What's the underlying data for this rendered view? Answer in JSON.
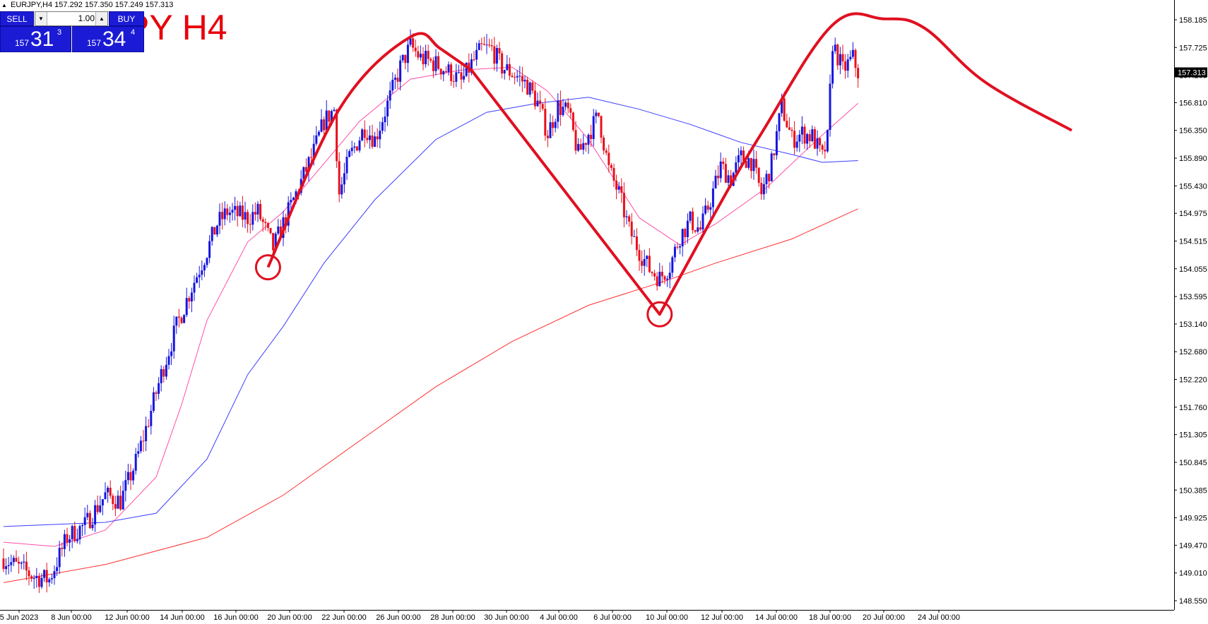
{
  "header": {
    "symbol": "EURJPY,H4",
    "ohlc": "157.292 157.350 157.249 157.313"
  },
  "watermark": "PY H4",
  "trade_panel": {
    "sell_label": "SELL",
    "buy_label": "BUY",
    "lot": "1.00",
    "bid_small": "157",
    "bid_large": "31",
    "bid_sup": "3",
    "ask_small": "157",
    "ask_large": "34",
    "ask_sup": "4"
  },
  "colors": {
    "bull": "#1515e0",
    "bear": "#e8101c",
    "ma_fast": "#ff4fa8",
    "ma_mid": "#3c3cff",
    "ma_slow": "#ff3030",
    "pattern": "#e01020",
    "grid_text": "#000000",
    "price_label_bg": "#000000"
  },
  "chart_data": {
    "type": "candlestick",
    "y_axis_ticks": [
      "158.185",
      "157.725",
      "157.265",
      "156.810",
      "156.350",
      "155.890",
      "155.430",
      "154.975",
      "154.515",
      "154.055",
      "153.595",
      "153.140",
      "152.680",
      "152.220",
      "151.760",
      "151.305",
      "150.845",
      "150.385",
      "149.925",
      "149.470",
      "149.010",
      "148.550"
    ],
    "x_axis_ticks": [
      "5 Jun 2023",
      "8 Jun 00:00",
      "12 Jun 00:00",
      "14 Jun 00:00",
      "16 Jun 00:00",
      "20 Jun 00:00",
      "22 Jun 00:00",
      "26 Jun 00:00",
      "28 Jun 00:00",
      "30 Jun 00:00",
      "4 Jul 00:00",
      "6 Jul 00:00",
      "10 Jul 00:00",
      "12 Jul 00:00",
      "14 Jul 00:00",
      "18 Jul 00:00",
      "20 Jul 00:00",
      "24 Jul 00:00"
    ],
    "ylim": [
      148.5,
      158.25
    ],
    "current_price": "157.313",
    "close_path": [
      [
        0,
        149.25
      ],
      [
        12,
        148.95
      ],
      [
        18,
        148.9
      ],
      [
        25,
        149.6
      ],
      [
        32,
        149.8
      ],
      [
        40,
        150.3
      ],
      [
        46,
        150.2
      ],
      [
        52,
        150.85
      ],
      [
        56,
        151.4
      ],
      [
        62,
        152.3
      ],
      [
        68,
        153.1
      ],
      [
        74,
        153.75
      ],
      [
        80,
        154.35
      ],
      [
        84,
        154.8
      ],
      [
        88,
        155.0
      ],
      [
        96,
        154.9
      ],
      [
        100,
        155.0
      ],
      [
        104,
        154.6
      ],
      [
        106,
        154.4
      ],
      [
        110,
        154.8
      ],
      [
        116,
        155.4
      ],
      [
        122,
        156.0
      ],
      [
        126,
        156.5
      ],
      [
        130,
        156.7
      ],
      [
        132,
        155.3
      ],
      [
        136,
        155.9
      ],
      [
        142,
        156.4
      ],
      [
        146,
        156.2
      ],
      [
        152,
        156.9
      ],
      [
        156,
        157.4
      ],
      [
        160,
        157.75
      ],
      [
        164,
        157.55
      ],
      [
        170,
        157.45
      ],
      [
        176,
        157.3
      ],
      [
        180,
        157.15
      ],
      [
        184,
        157.45
      ],
      [
        188,
        157.7
      ],
      [
        192,
        157.7
      ],
      [
        196,
        157.4
      ],
      [
        202,
        157.25
      ],
      [
        206,
        157.1
      ],
      [
        210,
        156.8
      ],
      [
        214,
        156.3
      ],
      [
        218,
        156.75
      ],
      [
        222,
        156.65
      ],
      [
        226,
        155.95
      ],
      [
        230,
        156.3
      ],
      [
        234,
        156.6
      ],
      [
        238,
        155.7
      ],
      [
        242,
        155.3
      ],
      [
        246,
        154.7
      ],
      [
        250,
        154.35
      ],
      [
        254,
        154.05
      ],
      [
        258,
        153.9
      ],
      [
        262,
        154.1
      ],
      [
        266,
        154.6
      ],
      [
        270,
        154.85
      ],
      [
        274,
        154.7
      ],
      [
        278,
        155.2
      ],
      [
        282,
        155.75
      ],
      [
        286,
        155.55
      ],
      [
        290,
        155.9
      ],
      [
        294,
        155.85
      ],
      [
        298,
        155.3
      ],
      [
        302,
        155.8
      ],
      [
        306,
        156.75
      ],
      [
        310,
        156.2
      ],
      [
        314,
        156.3
      ],
      [
        318,
        156.25
      ],
      [
        322,
        155.9
      ],
      [
        324,
        156.2
      ],
      [
        326,
        157.8
      ],
      [
        330,
        157.35
      ],
      [
        334,
        157.55
      ],
      [
        336,
        157.313
      ]
    ],
    "candles_visible": 337,
    "moving_averages": [
      {
        "points": [
          [
            0,
            149.52
          ],
          [
            20,
            149.45
          ],
          [
            40,
            149.72
          ],
          [
            60,
            150.6
          ],
          [
            70,
            151.8
          ],
          [
            80,
            153.2
          ],
          [
            96,
            154.5
          ],
          [
            110,
            155.0
          ],
          [
            120,
            155.5
          ],
          [
            140,
            156.5
          ],
          [
            160,
            157.2
          ],
          [
            180,
            157.35
          ],
          [
            200,
            157.4
          ],
          [
            214,
            157.0
          ],
          [
            230,
            156.2
          ],
          [
            250,
            154.9
          ],
          [
            266,
            154.45
          ],
          [
            280,
            154.8
          ],
          [
            300,
            155.4
          ],
          [
            320,
            156.2
          ],
          [
            336,
            156.8
          ]
        ]
      },
      {
        "points": [
          [
            0,
            149.78
          ],
          [
            40,
            149.85
          ],
          [
            60,
            150.0
          ],
          [
            80,
            150.9
          ],
          [
            96,
            152.3
          ],
          [
            110,
            153.1
          ],
          [
            126,
            154.15
          ],
          [
            146,
            155.2
          ],
          [
            170,
            156.2
          ],
          [
            190,
            156.65
          ],
          [
            210,
            156.8
          ],
          [
            230,
            156.9
          ],
          [
            250,
            156.7
          ],
          [
            270,
            156.45
          ],
          [
            290,
            156.15
          ],
          [
            310,
            155.95
          ],
          [
            322,
            155.82
          ],
          [
            336,
            155.85
          ]
        ]
      },
      {
        "points": [
          [
            0,
            148.85
          ],
          [
            40,
            149.15
          ],
          [
            80,
            149.6
          ],
          [
            110,
            150.3
          ],
          [
            140,
            151.2
          ],
          [
            170,
            152.1
          ],
          [
            200,
            152.85
          ],
          [
            230,
            153.45
          ],
          [
            260,
            153.85
          ],
          [
            280,
            154.15
          ],
          [
            310,
            154.55
          ],
          [
            336,
            155.05
          ]
        ]
      }
    ],
    "pattern_curve": [
      [
        104,
        154.08
      ],
      [
        132,
        156.7
      ],
      [
        160,
        157.9
      ],
      [
        172,
        157.7
      ],
      [
        184,
        157.35
      ],
      [
        258,
        153.3
      ],
      [
        280,
        155.0
      ],
      [
        298,
        156.3
      ],
      [
        326,
        158.1
      ],
      [
        346,
        158.2
      ],
      [
        362,
        158.05
      ],
      [
        386,
        157.15
      ],
      [
        420,
        156.35
      ]
    ],
    "circles": [
      [
        104,
        154.08
      ],
      [
        258,
        153.3
      ]
    ]
  }
}
